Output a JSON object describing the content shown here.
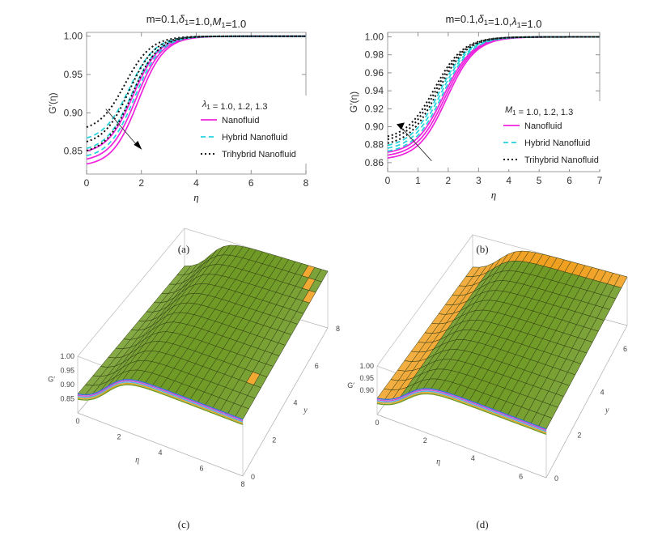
{
  "chart_data": [
    {
      "panel": "a",
      "type": "line",
      "title": "m=0.1,δ1=1.0,M1=1.0",
      "xlabel": "η",
      "ylabel": "G′(η)",
      "xlim": [
        0,
        8
      ],
      "ylim": [
        0.82,
        1.005
      ],
      "xticks": [
        "0",
        "2",
        "4",
        "6",
        "8"
      ],
      "yticks": [
        "0.85",
        "0.90",
        "0.95",
        "1.00"
      ],
      "ytick_values": [
        0.85,
        0.9,
        0.95,
        1.0
      ],
      "legend_header": "λ1 = 1.0, 1.2, 1.3",
      "legend": [
        "Nanofluid",
        "Hybrid Nanofluid",
        "Trihybrid Nanofluid"
      ],
      "arrow": "down",
      "series": [
        {
          "name": "Nanofluid",
          "style": "solid",
          "color": "#ee22dd",
          "y0": [
            0.846,
            0.836,
            0.83
          ],
          "mid": [
            1.7,
            1.8,
            1.88
          ]
        },
        {
          "name": "Hybrid Nanofluid",
          "style": "dashed",
          "color": "#22d3dd",
          "y0": [
            0.862,
            0.849,
            0.84
          ],
          "mid": [
            1.55,
            1.65,
            1.75
          ]
        },
        {
          "name": "Trihybrid Nanofluid",
          "style": "dotted",
          "color": "#111111",
          "y0": [
            0.875,
            0.857,
            0.846
          ],
          "mid": [
            1.4,
            1.55,
            1.65
          ]
        }
      ]
    },
    {
      "panel": "b",
      "type": "line",
      "title": "m=0.1,δ1=1.0,λ1=1.0",
      "xlabel": "η",
      "ylabel": "G′(η)",
      "xlim": [
        0,
        7
      ],
      "ylim": [
        0.85,
        1.005
      ],
      "xticks": [
        "0",
        "1",
        "2",
        "3",
        "4",
        "5",
        "6",
        "7"
      ],
      "yticks": [
        "0.86",
        "0.88",
        "0.90",
        "0.92",
        "0.94",
        "0.96",
        "0.98",
        "1.00"
      ],
      "ytick_values": [
        0.86,
        0.88,
        0.9,
        0.92,
        0.94,
        0.96,
        0.98,
        1.0
      ],
      "legend_header": "M1 = 1.0, 1.2, 1.3",
      "legend": [
        "Nanofluid",
        "Hybrid Nanofluid",
        "Trihybrid Nanofluid"
      ],
      "arrow": "up",
      "series": [
        {
          "name": "Nanofluid",
          "style": "solid",
          "color": "#ee22dd",
          "y0": [
            0.863,
            0.866,
            0.869
          ],
          "mid": [
            1.95,
            1.9,
            1.85
          ]
        },
        {
          "name": "Hybrid Nanofluid",
          "style": "dashed",
          "color": "#22d3dd",
          "y0": [
            0.87,
            0.873,
            0.876
          ],
          "mid": [
            1.8,
            1.75,
            1.7
          ]
        },
        {
          "name": "Trihybrid Nanofluid",
          "style": "dotted",
          "color": "#111111",
          "y0": [
            0.878,
            0.882,
            0.885
          ],
          "mid": [
            1.65,
            1.6,
            1.55
          ]
        }
      ]
    },
    {
      "panel": "c",
      "type": "surface",
      "zlabel": "G′",
      "xlabel": "η",
      "ylabel": "y",
      "zticks": [
        "1.00",
        "0.95",
        "0.90",
        "0.85"
      ],
      "xticks": [
        "0",
        "2",
        "4",
        "6",
        "8"
      ],
      "yticks": [
        "0",
        "2",
        "4",
        "6",
        "8"
      ],
      "surface_color": "#6f9a25",
      "highlight_color": "#f0a020"
    },
    {
      "panel": "d",
      "type": "surface",
      "zlabel": "G′",
      "xlabel": "η",
      "ylabel": "y",
      "zticks": [
        "1.00",
        "0.95",
        "0.90"
      ],
      "xticks": [
        "0",
        "2",
        "4",
        "6"
      ],
      "yticks": [
        "0",
        "2",
        "4",
        "6"
      ],
      "surface_color": "#6f9a25",
      "highlight_color": "#f0a020"
    }
  ],
  "captions": [
    "(a)",
    "(b)",
    "(c)",
    "(d)"
  ]
}
